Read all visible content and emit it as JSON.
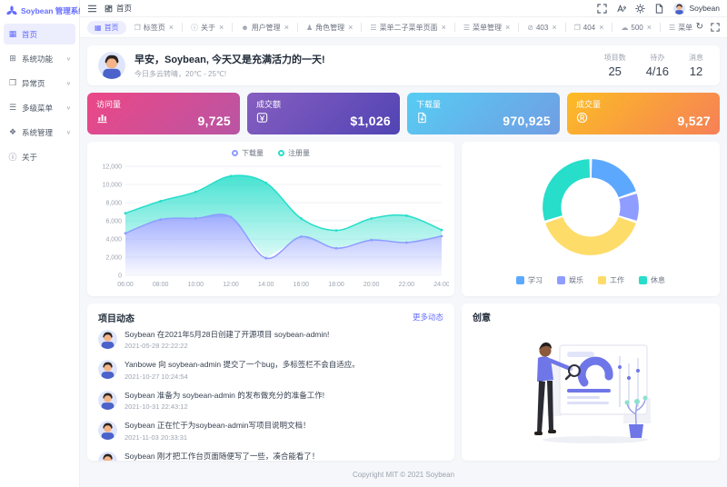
{
  "app": {
    "title": "Soybean 管理系统",
    "user_name": "Soybean"
  },
  "colors": {
    "primary": "#646cff"
  },
  "icons": {
    "chevron_down": "∨",
    "close": "×",
    "refresh": "↻",
    "logo": "soybean-logo"
  },
  "sidebar": {
    "items": [
      {
        "key": "home",
        "icon_name": "dashboard-icon",
        "icon_glyph": "▦",
        "label": "首页",
        "active": true,
        "expandable": false
      },
      {
        "key": "system-function",
        "icon_name": "grid-icon",
        "icon_glyph": "⊞",
        "label": "系统功能",
        "active": false,
        "expandable": true
      },
      {
        "key": "exception-page",
        "icon_name": "window-icon",
        "icon_glyph": "❒",
        "label": "异常页",
        "active": false,
        "expandable": true
      },
      {
        "key": "multi-menu",
        "icon_name": "menu-icon",
        "icon_glyph": "☰",
        "label": "多级菜单",
        "active": false,
        "expandable": true
      },
      {
        "key": "system-admin",
        "icon_name": "console-icon",
        "icon_glyph": "❖",
        "label": "系统管理",
        "active": false,
        "expandable": true
      },
      {
        "key": "about",
        "icon_name": "info-icon",
        "icon_glyph": "ⓘ",
        "label": "关于",
        "active": false,
        "expandable": false
      }
    ]
  },
  "header": {
    "breadcrumb": {
      "label": "首页"
    }
  },
  "tabbar": {
    "tabs": [
      {
        "key": "home",
        "icon_glyph": "▦",
        "label": "首页",
        "active": true,
        "closable": false
      },
      {
        "key": "tab-page",
        "icon_glyph": "❐",
        "label": "标签页",
        "active": false,
        "closable": true
      },
      {
        "key": "about",
        "icon_glyph": "ⓘ",
        "label": "关于",
        "active": false,
        "closable": true
      },
      {
        "key": "user-manage",
        "icon_glyph": "☻",
        "label": "用户管理",
        "active": false,
        "closable": true
      },
      {
        "key": "role-manage",
        "icon_glyph": "♟",
        "label": "角色管理",
        "active": false,
        "closable": true
      },
      {
        "key": "menu2-sub",
        "icon_glyph": "☰",
        "label": "菜单二子菜单页面",
        "active": false,
        "closable": true
      },
      {
        "key": "menu-manage",
        "icon_glyph": "☰",
        "label": "菜单管理",
        "active": false,
        "closable": true
      },
      {
        "key": "403",
        "icon_glyph": "⊘",
        "label": "403",
        "active": false,
        "closable": true
      },
      {
        "key": "404",
        "icon_glyph": "❒",
        "label": "404",
        "active": false,
        "closable": true
      },
      {
        "key": "500",
        "icon_glyph": "☁",
        "label": "500",
        "active": false,
        "closable": true
      },
      {
        "key": "menu1-sub",
        "icon_glyph": "☰",
        "label": "菜单一子菜单",
        "active": false,
        "closable": true
      }
    ]
  },
  "greeting": {
    "title": "早安，Soybean, 今天又是充满活力的一天!",
    "subtitle": "今日多云转晴，20℃ - 25℃!",
    "stats": [
      {
        "label": "项目数",
        "value": "25"
      },
      {
        "label": "待办",
        "value": "4/16"
      },
      {
        "label": "消息",
        "value": "12"
      }
    ]
  },
  "stat_cards": [
    {
      "label": "访问量",
      "value": "9,725",
      "icon_name": "bar-chart-icon",
      "gradient_from": "#ec4786",
      "gradient_to": "#b955a4"
    },
    {
      "label": "成交额",
      "value": "$1,026",
      "icon_name": "money-icon",
      "gradient_from": "#865ec0",
      "gradient_to": "#5144b4"
    },
    {
      "label": "下载量",
      "value": "970,925",
      "icon_name": "download-icon",
      "gradient_from": "#56cdf3",
      "gradient_to": "#719de3"
    },
    {
      "label": "成交量",
      "value": "9,527",
      "icon_name": "trademark-icon",
      "gradient_from": "#fcbc25",
      "gradient_to": "#f68057"
    }
  ],
  "chart_data": [
    {
      "type": "area",
      "stacked": true,
      "legend_position": "top",
      "grid": true,
      "x": [
        "06:00",
        "08:00",
        "10:00",
        "12:00",
        "14:00",
        "16:00",
        "18:00",
        "20:00",
        "22:00",
        "24:00"
      ],
      "series": [
        {
          "name": "下载量",
          "color": "#8e9dff",
          "values": [
            4623,
            6145,
            6268,
            6411,
            1890,
            4251,
            2978,
            3880,
            3606,
            4311
          ]
        },
        {
          "name": "注册量",
          "color": "#26deca",
          "values": [
            2208,
            2016,
            2916,
            4512,
            8281,
            2008,
            1963,
            2367,
            2956,
            678
          ]
        }
      ],
      "ylim": [
        0,
        12000
      ],
      "y_ticks": [
        0,
        2000,
        4000,
        6000,
        8000,
        10000,
        12000
      ],
      "xlabel": "",
      "ylabel": "",
      "title": ""
    },
    {
      "type": "pie",
      "donut": true,
      "legend_position": "bottom",
      "title": "",
      "slices": [
        {
          "label": "学习",
          "value": 20,
          "color": "#5da8ff"
        },
        {
          "label": "娱乐",
          "value": 10,
          "color": "#8e9dff"
        },
        {
          "label": "工作",
          "value": 40,
          "color": "#fedc69"
        },
        {
          "label": "休息",
          "value": 30,
          "color": "#26deca"
        }
      ]
    }
  ],
  "news": {
    "title": "项目动态",
    "more_label": "更多动态",
    "items": [
      {
        "text": "Soybean 在2021年5月28日创建了开源项目 soybean-admin!",
        "time": "2021-05-28 22:22:22"
      },
      {
        "text": "Yanbowe 向 soybean-admin 提交了一个bug，多标签栏不会自适应。",
        "time": "2021-10-27 10:24:54"
      },
      {
        "text": "Soybean 准备为 soybean-admin 的发布做充分的准备工作!",
        "time": "2021-10-31 22:43:12"
      },
      {
        "text": "Soybean 正在忙于为soybean-admin写项目说明文档！",
        "time": "2021-11-03 20:33:31"
      },
      {
        "text": "Soybean 刚才把工作台页面随便写了一些，凑合能看了！",
        "time": "2021-11-07 22:45:32"
      }
    ]
  },
  "idea": {
    "title": "创意"
  },
  "footer": {
    "text": "Copyright MIT © 2021 Soybean"
  }
}
